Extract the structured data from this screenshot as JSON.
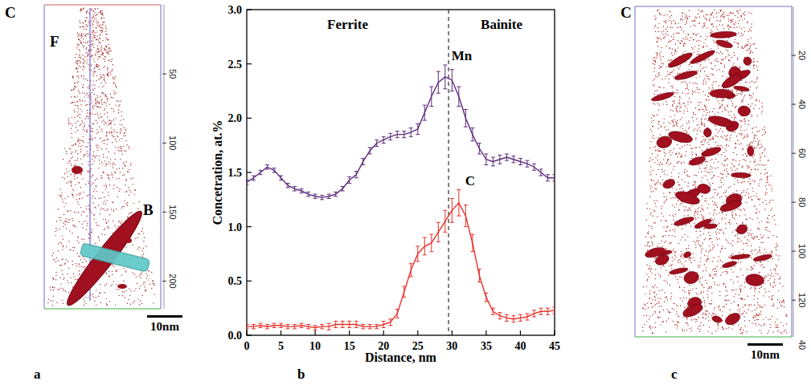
{
  "panel_letters": [
    "a",
    "b",
    "c"
  ],
  "panel_a": {
    "corner_label": "C",
    "labels": [
      "F",
      "B"
    ],
    "axis_range": [
      0,
      220
    ],
    "axis_ticks": [
      50,
      100,
      150,
      200
    ],
    "scale_bar": "10nm"
  },
  "chart_data": {
    "type": "line",
    "x_label": "Distance, nm",
    "y_label": "Concetration, at.%",
    "regions": [
      "Ferrite",
      "Bainite"
    ],
    "boundary": 29.5,
    "x": [
      0,
      1,
      2,
      3,
      4,
      5,
      6,
      7,
      8,
      9,
      10,
      11,
      12,
      13,
      14,
      15,
      16,
      17,
      18,
      19,
      20,
      21,
      22,
      23,
      24,
      25,
      26,
      27,
      28,
      29,
      30,
      31,
      32,
      33,
      34,
      35,
      36,
      37,
      38,
      39,
      40,
      41,
      42,
      43,
      44,
      45
    ],
    "xlim": [
      0,
      45
    ],
    "xticks": [
      0,
      5,
      10,
      15,
      20,
      25,
      30,
      35,
      40,
      45
    ],
    "ylim": [
      0,
      3
    ],
    "yticks": [
      {
        "value": 0,
        "label": "0.0"
      },
      {
        "value": 0.5,
        "label": "0.5"
      },
      {
        "value": 1,
        "label": "1.0"
      },
      {
        "value": 1.5,
        "label": "1.5"
      },
      {
        "value": 2,
        "label": "2.0"
      },
      {
        "value": 2.5,
        "label": "2.5"
      },
      {
        "value": 3,
        "label": "3.0"
      }
    ],
    "series": [
      {
        "name": "Mn",
        "color": "#5e2c7e",
        "line_style": "solid",
        "values": [
          1.41,
          1.45,
          1.5,
          1.55,
          1.52,
          1.45,
          1.38,
          1.35,
          1.33,
          1.3,
          1.28,
          1.27,
          1.28,
          1.3,
          1.35,
          1.43,
          1.48,
          1.6,
          1.7,
          1.77,
          1.8,
          1.83,
          1.85,
          1.85,
          1.87,
          1.9,
          2.05,
          2.2,
          2.33,
          2.38,
          2.35,
          2.2,
          2.0,
          1.85,
          1.72,
          1.62,
          1.6,
          1.62,
          1.64,
          1.62,
          1.6,
          1.58,
          1.55,
          1.5,
          1.45,
          1.45
        ],
        "errors": [
          0.02,
          0.02,
          0.02,
          0.02,
          0.02,
          0.02,
          0.02,
          0.02,
          0.02,
          0.02,
          0.02,
          0.02,
          0.02,
          0.02,
          0.02,
          0.03,
          0.03,
          0.03,
          0.03,
          0.03,
          0.03,
          0.03,
          0.03,
          0.03,
          0.04,
          0.05,
          0.07,
          0.09,
          0.1,
          0.11,
          0.1,
          0.09,
          0.08,
          0.06,
          0.05,
          0.05,
          0.04,
          0.04,
          0.03,
          0.03,
          0.03,
          0.03,
          0.03,
          0.03,
          0.03,
          0.03
        ]
      },
      {
        "name": "C",
        "color": "#e8312a",
        "line_style": "solid",
        "values": [
          0.08,
          0.08,
          0.09,
          0.08,
          0.09,
          0.09,
          0.08,
          0.08,
          0.09,
          0.08,
          0.07,
          0.08,
          0.08,
          0.1,
          0.1,
          0.1,
          0.1,
          0.08,
          0.08,
          0.08,
          0.1,
          0.12,
          0.2,
          0.4,
          0.6,
          0.75,
          0.82,
          0.85,
          0.95,
          1.05,
          1.15,
          1.22,
          1.1,
          0.85,
          0.55,
          0.35,
          0.22,
          0.18,
          0.16,
          0.15,
          0.16,
          0.17,
          0.2,
          0.22,
          0.22,
          0.23
        ],
        "errors": [
          0.02,
          0.02,
          0.02,
          0.02,
          0.02,
          0.02,
          0.02,
          0.02,
          0.02,
          0.02,
          0.02,
          0.02,
          0.03,
          0.03,
          0.03,
          0.03,
          0.03,
          0.02,
          0.02,
          0.02,
          0.03,
          0.03,
          0.04,
          0.05,
          0.06,
          0.07,
          0.08,
          0.08,
          0.09,
          0.1,
          0.11,
          0.12,
          0.1,
          0.08,
          0.06,
          0.04,
          0.03,
          0.03,
          0.03,
          0.03,
          0.03,
          0.03,
          0.03,
          0.03,
          0.03,
          0.03
        ]
      }
    ]
  },
  "panel_c": {
    "corner_label": "C",
    "axis_range": [
      0,
      135
    ],
    "axis_ticks": [
      20,
      40,
      60,
      80,
      100,
      120
    ],
    "depth_ticks": [
      40
    ],
    "scale_bar": "10nm"
  }
}
